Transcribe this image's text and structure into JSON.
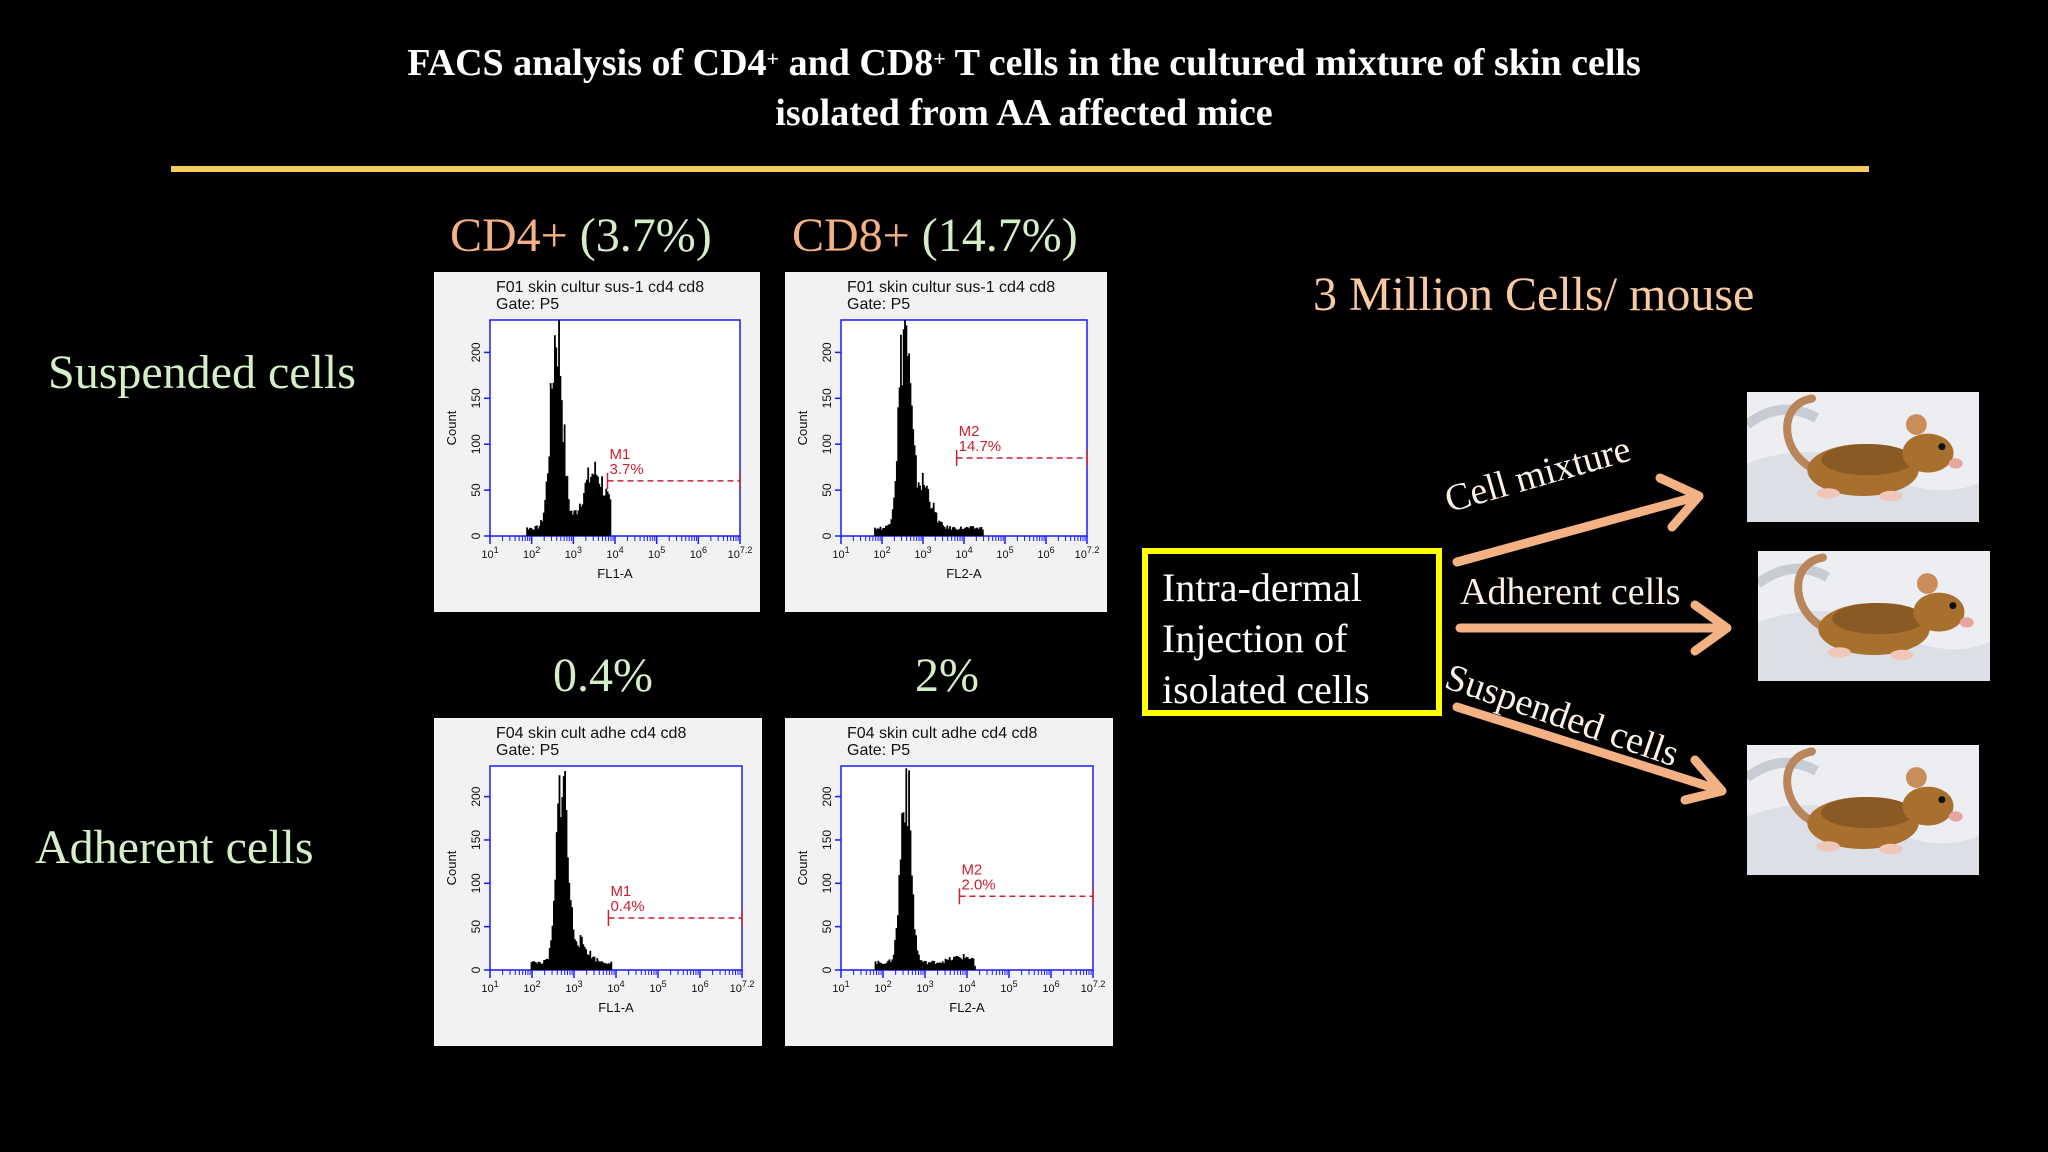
{
  "slide": {
    "title_line1_parts": [
      "FACS analysis of CD4",
      "+",
      " and CD8",
      "+",
      " T cells in the cultured mixture of skin cells"
    ],
    "title_line2": "isolated from AA affected mice",
    "accent_color": "#f5cd5b"
  },
  "labels": {
    "cd4_header": "CD4+ (3.7%)",
    "cd8_header": "CD8+ (14.7%)",
    "row_suspended": "Suspended cells",
    "row_adherent": "Adherent cells",
    "adherent_cd4_pct": "0.4%",
    "adherent_cd8_pct": "2%",
    "cells_per_mouse": "3 Million Cells/ mouse",
    "injection_box": [
      "Intra-dermal",
      "Injection of",
      "isolated cells"
    ],
    "arrow_labels": [
      "Cell mixture",
      "Adherent cells",
      "Suspended cells"
    ]
  },
  "histograms": [
    {
      "id": "h1",
      "sample": "F01 skin cultur sus-1 cd4 cd8",
      "gate": "Gate: P5",
      "channel": "FL1-A",
      "marker": "M1",
      "percent": "3.7%",
      "marker_level": 60,
      "y_ticks": [
        "0",
        "50",
        "100",
        "150",
        "200"
      ],
      "y_label": "Count",
      "x_ticks": [
        "10^1",
        "10^2",
        "10^3",
        "10^4",
        "10^5",
        "10^6",
        "10^7.2"
      ]
    },
    {
      "id": "h2",
      "sample": "F01 skin cultur sus-1 cd4 cd8",
      "gate": "Gate: P5",
      "channel": "FL2-A",
      "marker": "M2",
      "percent": "14.7%",
      "marker_level": 85,
      "y_ticks": [
        "0",
        "50",
        "100",
        "150",
        "200"
      ],
      "y_label": "Count",
      "x_ticks": [
        "10^1",
        "10^2",
        "10^3",
        "10^4",
        "10^5",
        "10^6",
        "10^7.2"
      ]
    },
    {
      "id": "h3",
      "sample": "F04 skin cult adhe cd4 cd8",
      "gate": "Gate: P5",
      "channel": "FL1-A",
      "marker": "M1",
      "percent": "0.4%",
      "marker_level": 60,
      "y_ticks": [
        "0",
        "50",
        "100",
        "150",
        "200"
      ],
      "y_label": "Count",
      "x_ticks": [
        "10^1",
        "10^2",
        "10^3",
        "10^4",
        "10^5",
        "10^6",
        "10^7.2"
      ]
    },
    {
      "id": "h4",
      "sample": "F04 skin cult adhe cd4 cd8",
      "gate": "Gate: P5",
      "channel": "FL2-A",
      "marker": "M2",
      "percent": "2.0%",
      "marker_level": 85,
      "y_ticks": [
        "0",
        "50",
        "100",
        "150",
        "200"
      ],
      "y_label": "Count",
      "x_ticks": [
        "10^1",
        "10^2",
        "10^3",
        "10^4",
        "10^5",
        "10^6",
        "10^7.2"
      ]
    }
  ],
  "mice_images": [
    "mouse-photo",
    "mouse-photo",
    "mouse-photo"
  ]
}
